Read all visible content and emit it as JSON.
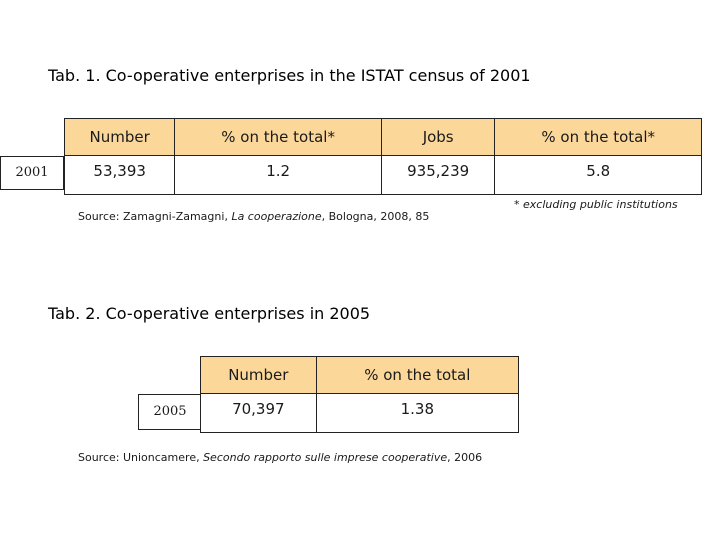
{
  "table1": {
    "title": "Tab. 1. Co-operative enterprises in the ISTAT census of 2001",
    "headers": [
      "Number",
      "% on the total*",
      "Jobs",
      "% on the total*"
    ],
    "row_label": "2001",
    "values": [
      "53,393",
      "1.2",
      "935,239",
      "5.8"
    ],
    "footnote": "* excluding public institutions",
    "source_prefix": "Source: Zamagni-Zamagni, ",
    "source_title": "La cooperazione",
    "source_suffix": ", Bologna, 2008, 85"
  },
  "table2": {
    "title": "Tab. 2. Co-operative enterprises in 2005",
    "headers": [
      "Number",
      "% on the total"
    ],
    "row_label": "2005",
    "values": [
      "70,397",
      "1.38"
    ],
    "source_prefix": "Source: Unioncamere, ",
    "source_title": "Secondo rapporto sulle imprese cooperative",
    "source_suffix": ", 2006"
  }
}
